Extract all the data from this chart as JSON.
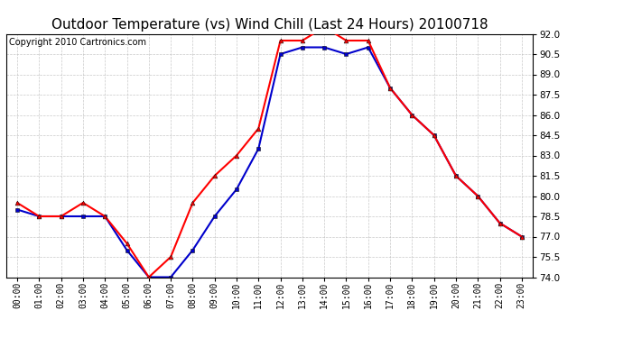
{
  "title": "Outdoor Temperature (vs) Wind Chill (Last 24 Hours) 20100718",
  "copyright": "Copyright 2010 Cartronics.com",
  "hours": [
    "00:00",
    "01:00",
    "02:00",
    "03:00",
    "04:00",
    "05:00",
    "06:00",
    "07:00",
    "08:00",
    "09:00",
    "10:00",
    "11:00",
    "12:00",
    "13:00",
    "14:00",
    "15:00",
    "16:00",
    "17:00",
    "18:00",
    "19:00",
    "20:00",
    "21:00",
    "22:00",
    "23:00"
  ],
  "temp": [
    79.5,
    78.5,
    78.5,
    79.5,
    78.5,
    76.5,
    74.0,
    75.5,
    79.5,
    81.5,
    83.0,
    85.0,
    91.5,
    91.5,
    92.5,
    91.5,
    91.5,
    88.0,
    86.0,
    84.5,
    81.5,
    80.0,
    78.0,
    77.0
  ],
  "wind_chill": [
    79.0,
    78.5,
    78.5,
    78.5,
    78.5,
    76.0,
    74.0,
    74.0,
    76.0,
    78.5,
    80.5,
    83.5,
    90.5,
    91.0,
    91.0,
    90.5,
    91.0,
    88.0,
    86.0,
    84.5,
    81.5,
    80.0,
    78.0,
    77.0
  ],
  "temp_color": "#FF0000",
  "wind_chill_color": "#0000CC",
  "ylim_min": 74.0,
  "ylim_max": 92.0,
  "yticks": [
    74.0,
    75.5,
    77.0,
    78.5,
    80.0,
    81.5,
    83.0,
    84.5,
    86.0,
    87.5,
    89.0,
    90.5,
    92.0
  ],
  "background_color": "#FFFFFF",
  "grid_color": "#BBBBBB",
  "title_fontsize": 11,
  "copyright_fontsize": 7,
  "marker_size": 3.5,
  "linewidth": 1.5
}
